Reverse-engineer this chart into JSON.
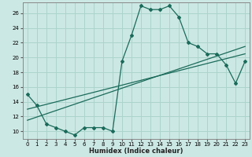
{
  "xlabel": "Humidex (Indice chaleur)",
  "ylabel": "",
  "bg_color": "#cce8e4",
  "grid_color": "#aad4cc",
  "line_color": "#1a6b5a",
  "xlim": [
    -0.5,
    23.5
  ],
  "ylim": [
    9,
    27.5
  ],
  "xticks": [
    0,
    1,
    2,
    3,
    4,
    5,
    6,
    7,
    8,
    9,
    10,
    11,
    12,
    13,
    14,
    15,
    16,
    17,
    18,
    19,
    20,
    21,
    22,
    23
  ],
  "yticks": [
    10,
    12,
    14,
    16,
    18,
    20,
    22,
    24,
    26
  ],
  "main_x": [
    0,
    1,
    2,
    3,
    4,
    5,
    6,
    7,
    8,
    9,
    10,
    11,
    12,
    13,
    14,
    15,
    16,
    17,
    18,
    19,
    20,
    21,
    22,
    23
  ],
  "main_y": [
    15.0,
    13.5,
    11.0,
    10.5,
    10.0,
    9.5,
    10.5,
    10.5,
    10.5,
    10.0,
    19.5,
    23.0,
    27.0,
    26.5,
    26.5,
    27.0,
    25.5,
    22.0,
    21.5,
    20.5,
    20.5,
    19.0,
    16.5,
    19.5
  ],
  "line2_x": [
    0,
    23
  ],
  "line2_y": [
    13.0,
    20.5
  ],
  "line3_x": [
    0,
    23
  ],
  "line3_y": [
    11.5,
    21.5
  ]
}
